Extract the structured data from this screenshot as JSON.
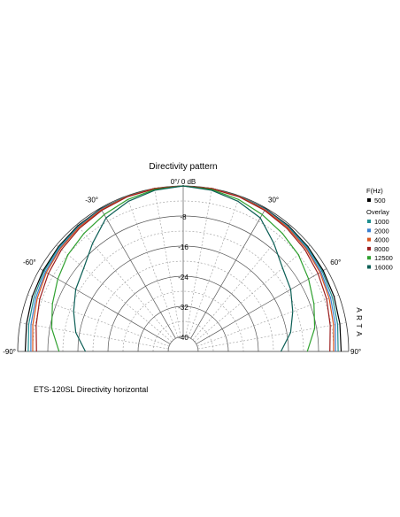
{
  "chart_data": {
    "type": "polar",
    "title": "Directivity pattern",
    "top_label": "0°/ 0 dB",
    "radial_ticks": [
      "-8",
      "-16",
      "-24",
      "-32",
      "-40"
    ],
    "radial_values": [
      -8,
      -16,
      -24,
      -32,
      -40
    ],
    "rlim": [
      -44,
      0
    ],
    "angle_range": [
      -90,
      90
    ],
    "angle_labels": [
      {
        "angle": -90,
        "text": "-90°"
      },
      {
        "angle": -60,
        "text": "-60°"
      },
      {
        "angle": -30,
        "text": "-30°"
      },
      {
        "angle": 30,
        "text": "30°"
      },
      {
        "angle": 60,
        "text": "60°"
      },
      {
        "angle": 90,
        "text": "90°"
      }
    ],
    "side_text": [
      "A",
      "R",
      "T",
      "A"
    ],
    "legend": {
      "header": "F(Hz)",
      "base": {
        "name": "500",
        "color": "#000000"
      },
      "overlay_label": "Overlay",
      "items": [
        {
          "name": "1000",
          "color": "#1f8f8f"
        },
        {
          "name": "2000",
          "color": "#3a7fd0"
        },
        {
          "name": "4000",
          "color": "#d9541e"
        },
        {
          "name": "8000",
          "color": "#9b1c1c"
        },
        {
          "name": "12500",
          "color": "#2ea02e"
        },
        {
          "name": "16000",
          "color": "#0b5e55"
        }
      ]
    },
    "angles": [
      -90,
      -80,
      -70,
      -60,
      -50,
      -40,
      -30,
      -20,
      -10,
      0,
      10,
      20,
      30,
      40,
      50,
      60,
      70,
      80,
      90
    ],
    "series": [
      {
        "name": "500",
        "color": "#000000",
        "values": [
          -2.0,
          -1.7,
          -1.3,
          -1.0,
          -0.7,
          -0.4,
          -0.2,
          -0.1,
          0,
          0,
          0,
          -0.1,
          -0.2,
          -0.4,
          -0.7,
          -1.0,
          -1.3,
          -1.7,
          -2.0
        ]
      },
      {
        "name": "1000",
        "color": "#1f8f8f",
        "values": [
          -2.8,
          -2.3,
          -1.8,
          -1.3,
          -0.9,
          -0.6,
          -0.3,
          -0.1,
          0,
          0,
          0,
          -0.1,
          -0.3,
          -0.6,
          -0.9,
          -1.3,
          -1.8,
          -2.3,
          -2.8
        ]
      },
      {
        "name": "2000",
        "color": "#3a7fd0",
        "values": [
          -3.5,
          -2.9,
          -2.3,
          -1.7,
          -1.2,
          -0.8,
          -0.4,
          -0.2,
          0,
          0,
          0,
          -0.2,
          -0.4,
          -0.8,
          -1.2,
          -1.7,
          -2.3,
          -2.9,
          -3.5
        ]
      },
      {
        "name": "4000",
        "color": "#d9541e",
        "values": [
          -4.0,
          -3.4,
          -2.7,
          -2.0,
          -1.4,
          -0.9,
          -0.5,
          -0.2,
          0,
          0,
          0,
          -0.2,
          -0.5,
          -0.9,
          -1.4,
          -2.0,
          -2.7,
          -3.4,
          -4.0
        ]
      },
      {
        "name": "8000",
        "color": "#9b1c1c",
        "values": [
          -5.0,
          -4.3,
          -3.4,
          -2.6,
          -1.8,
          -1.2,
          -0.7,
          -0.3,
          -0.1,
          0,
          -0.1,
          -0.3,
          -0.7,
          -1.2,
          -1.8,
          -2.6,
          -3.4,
          -4.3,
          -5.0
        ]
      },
      {
        "name": "12500",
        "color": "#2ea02e",
        "values": [
          -11.0,
          -8.5,
          -7.0,
          -5.5,
          -4.0,
          -3.0,
          -2.0,
          -1.0,
          -0.3,
          0,
          -0.3,
          -1.0,
          -2.0,
          -3.0,
          -4.0,
          -5.5,
          -7.0,
          -8.5,
          -11.0
        ]
      },
      {
        "name": "16000",
        "color": "#0b5e55",
        "values": [
          -18.0,
          -15.0,
          -13.0,
          -11.0,
          -9.5,
          -6.5,
          -3.0,
          -1.5,
          -0.5,
          0,
          -0.5,
          -1.5,
          -3.0,
          -6.5,
          -9.5,
          -11.0,
          -13.0,
          -15.0,
          -18.0
        ]
      }
    ]
  },
  "caption": "ETS-120SL Directivity horizontal"
}
